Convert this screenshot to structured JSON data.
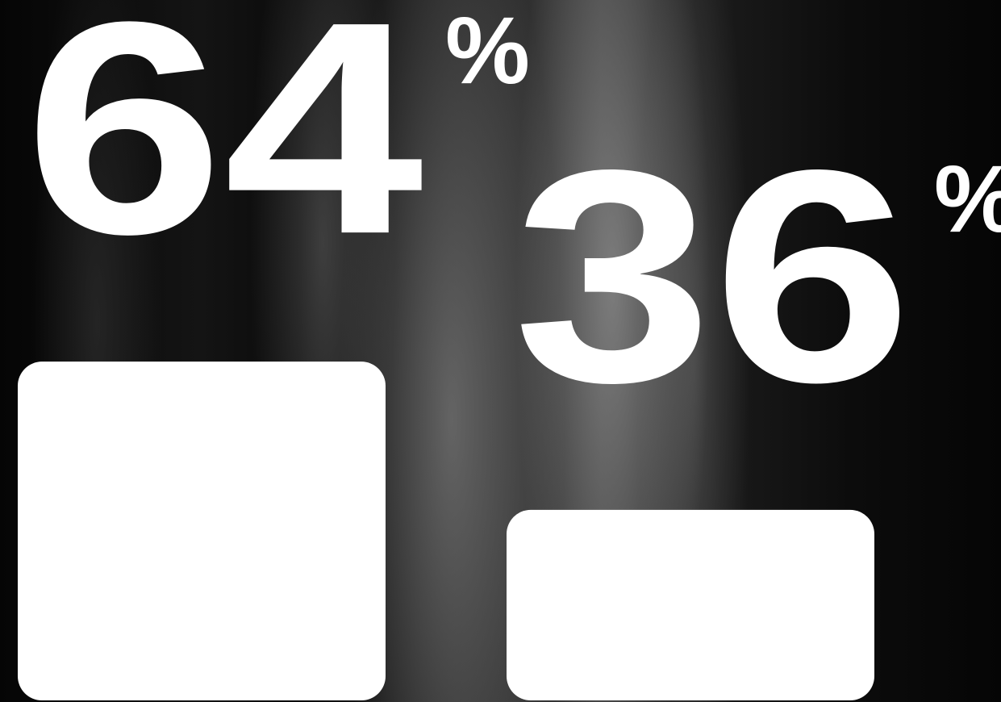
{
  "chart_data": {
    "type": "bar",
    "values": [
      64,
      36
    ],
    "unit": "%",
    "color": "#ffffff",
    "ylim": [
      0,
      100
    ]
  }
}
